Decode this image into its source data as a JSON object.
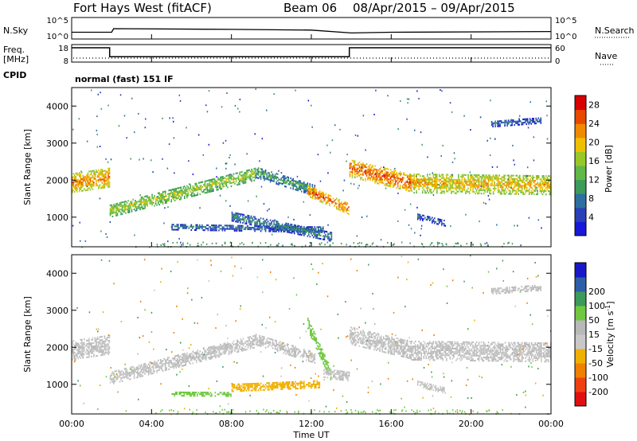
{
  "header": {
    "station": "Fort Hays West (fitACF)",
    "beam": "Beam 06",
    "dates": "08/Apr/2015 – 09/Apr/2015"
  },
  "noise_panel": {
    "left_label": "N.Sky",
    "right_label": "N.Search",
    "left_ticks": [
      "10^5",
      "10^0"
    ],
    "right_ticks": [
      "10^5",
      "10^0"
    ]
  },
  "freq_panel": {
    "left_label_line1": "Freq.",
    "left_label_line2": "[MHz]",
    "right_label": "Nave",
    "left_ticks": [
      "18",
      "8"
    ],
    "right_ticks": [
      "60",
      "0"
    ],
    "cpid_label": "CPID",
    "cpid_text": "normal (fast) 151 IF"
  },
  "time_axis": {
    "label": "Time UT",
    "ticks": [
      "00:00",
      "04:00",
      "08:00",
      "12:00",
      "16:00",
      "20:00",
      "00:00"
    ]
  },
  "colors": {
    "power_scale": [
      "#1818d8",
      "#2a40b8",
      "#2d6fa0",
      "#3c9a5a",
      "#5fb848",
      "#98c828",
      "#f0c000",
      "#f08a00",
      "#e84800",
      "#d80000"
    ],
    "velocity_scale": [
      "#e01010",
      "#f04010",
      "#f08000",
      "#f0b000",
      "#c8c8c8",
      "#b8b8b8",
      "#70c840",
      "#3c9a5a",
      "#2d5fa8",
      "#1818c8"
    ]
  },
  "chart_data": [
    {
      "type": "line",
      "name": "noise",
      "x_unit": "hours UT",
      "xlim": [
        0,
        24
      ],
      "series": [
        {
          "name": "N.Sky",
          "x": [
            0,
            2,
            2.1,
            8,
            12,
            14,
            16,
            24
          ],
          "y_rel": [
            0.25,
            0.25,
            0.5,
            0.45,
            0.4,
            0.2,
            0.25,
            0.3
          ]
        }
      ]
    },
    {
      "type": "line",
      "name": "frequency",
      "x_unit": "hours UT",
      "xlim": [
        0,
        24
      ],
      "ylim": [
        8,
        18
      ],
      "series": [
        {
          "name": "Freq.",
          "x": [
            0,
            1.9,
            1.9,
            13.9,
            13.9,
            24
          ],
          "y": [
            18,
            18,
            10.5,
            10.5,
            18,
            18
          ]
        }
      ]
    },
    {
      "type": "heatmap",
      "name": "power",
      "title": "",
      "xlabel": "Time UT",
      "ylabel": "Slant Range [km]",
      "xlim": [
        0,
        24
      ],
      "ylim": [
        200,
        4500
      ],
      "yticks": [
        1000,
        2000,
        3000,
        4000
      ],
      "colorbar_label": "Power [dB]",
      "colorbar_ticks": [
        4,
        8,
        12,
        16,
        20,
        24,
        28
      ],
      "colorbar_range": [
        0,
        30
      ],
      "bands": [
        {
          "x0": 0.0,
          "x1": 1.9,
          "center0": 1900,
          "center1": 2050,
          "half_width": 250,
          "power": 20
        },
        {
          "x0": 1.9,
          "x1": 9.2,
          "center0": 1150,
          "center1": 2150,
          "half_width": 170,
          "power": 14
        },
        {
          "x0": 9.2,
          "x1": 12.2,
          "center0": 2200,
          "center1": 1700,
          "half_width": 150,
          "power": 9
        },
        {
          "x0": 11.8,
          "x1": 13.9,
          "center0": 1700,
          "center1": 1200,
          "half_width": 150,
          "power": 22
        },
        {
          "x0": 5.0,
          "x1": 12.6,
          "center0": 720,
          "center1": 650,
          "half_width": 80,
          "power": 6
        },
        {
          "x0": 8.0,
          "x1": 13.0,
          "center0": 1000,
          "center1": 450,
          "half_width": 120,
          "power": 7
        },
        {
          "x0": 13.9,
          "x1": 17.0,
          "center0": 2300,
          "center1": 1900,
          "half_width": 230,
          "power": 22
        },
        {
          "x0": 17.0,
          "x1": 24.0,
          "center0": 1900,
          "center1": 1850,
          "half_width": 260,
          "power": 18
        },
        {
          "x0": 17.3,
          "x1": 18.7,
          "center0": 1000,
          "center1": 820,
          "half_width": 80,
          "power": 5
        },
        {
          "x0": 21.0,
          "x1": 23.5,
          "center0": 3500,
          "center1": 3600,
          "half_width": 80,
          "power": 5
        }
      ]
    },
    {
      "type": "heatmap",
      "name": "velocity",
      "title": "",
      "xlabel": "Time UT",
      "ylabel": "Slant Range [km]",
      "xlim": [
        0,
        24
      ],
      "ylim": [
        200,
        4500
      ],
      "yticks": [
        1000,
        2000,
        3000,
        4000
      ],
      "colorbar_label": "Velocity [m s^-1]",
      "colorbar_ticks": [
        -200,
        -100,
        -50,
        -15,
        15,
        50,
        100,
        200
      ],
      "bands": [
        {
          "x0": 0.0,
          "x1": 1.9,
          "center0": 1900,
          "center1": 2050,
          "half_width": 250,
          "vel": 0
        },
        {
          "x0": 1.9,
          "x1": 9.2,
          "center0": 1150,
          "center1": 2150,
          "half_width": 170,
          "vel": 0
        },
        {
          "x0": 9.2,
          "x1": 12.2,
          "center0": 2200,
          "center1": 1700,
          "half_width": 150,
          "vel": 0
        },
        {
          "x0": 11.8,
          "x1": 13.0,
          "center0": 2600,
          "center1": 1200,
          "half_width": 160,
          "vel": 40
        },
        {
          "x0": 12.6,
          "x1": 13.9,
          "center0": 1300,
          "center1": 1200,
          "half_width": 130,
          "vel": 0
        },
        {
          "x0": 5.0,
          "x1": 8.0,
          "center0": 730,
          "center1": 720,
          "half_width": 60,
          "vel": 40
        },
        {
          "x0": 8.0,
          "x1": 12.4,
          "center0": 900,
          "center1": 1000,
          "half_width": 110,
          "vel": -40
        },
        {
          "x0": 13.9,
          "x1": 17.0,
          "center0": 2300,
          "center1": 1900,
          "half_width": 230,
          "vel": 0
        },
        {
          "x0": 17.0,
          "x1": 24.0,
          "center0": 1900,
          "center1": 1850,
          "half_width": 260,
          "vel": 0
        },
        {
          "x0": 17.3,
          "x1": 18.7,
          "center0": 1000,
          "center1": 820,
          "half_width": 80,
          "vel": 0
        },
        {
          "x0": 21.0,
          "x1": 23.5,
          "center0": 3500,
          "center1": 3600,
          "half_width": 80,
          "vel": 0
        }
      ]
    }
  ]
}
